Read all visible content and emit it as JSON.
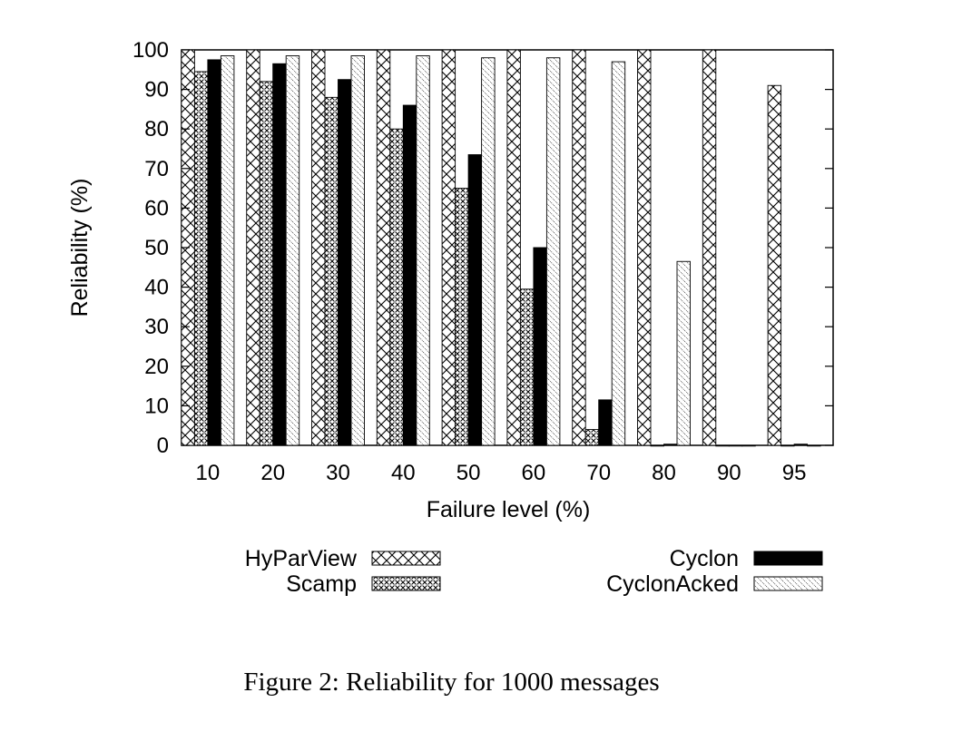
{
  "caption": "Figure 2: Reliability for 1000 messages",
  "chart_data": {
    "type": "bar",
    "title": "",
    "xlabel": "Failure level (%)",
    "ylabel": "Reliability (%)",
    "ylim": [
      0,
      100
    ],
    "yticks": [
      0,
      10,
      20,
      30,
      40,
      50,
      60,
      70,
      80,
      90,
      100
    ],
    "grid": false,
    "legend_position": "bottom",
    "categories": [
      "10",
      "20",
      "30",
      "40",
      "50",
      "60",
      "70",
      "80",
      "90",
      "95"
    ],
    "series": [
      {
        "name": "HyParView",
        "pattern": "crosshatch",
        "values": [
          100,
          100,
          100,
          100,
          100,
          100,
          100,
          100,
          100,
          91
        ]
      },
      {
        "name": "Scamp",
        "pattern": "dense-dots",
        "values": [
          94.5,
          92,
          88,
          80,
          65,
          39.5,
          4,
          0,
          0,
          0
        ]
      },
      {
        "name": "Cyclon",
        "pattern": "solid-black",
        "values": [
          97.5,
          96.5,
          92.5,
          86,
          73.5,
          50,
          11.5,
          0.3,
          0,
          0.3
        ]
      },
      {
        "name": "CyclonAcked",
        "pattern": "sparse-diagonal",
        "values": [
          98.5,
          98.5,
          98.5,
          98.5,
          98,
          98,
          97,
          46.5,
          0,
          0
        ]
      }
    ]
  }
}
